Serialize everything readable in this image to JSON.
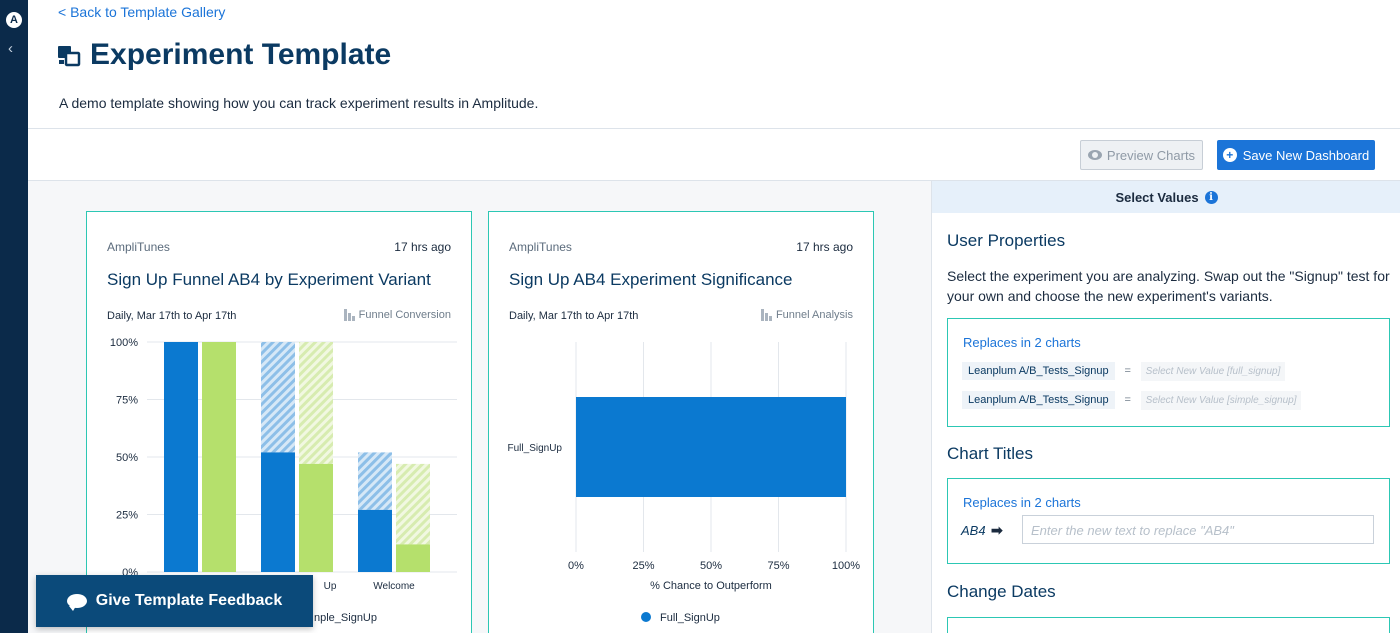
{
  "nav": {
    "logo_glyph": "A",
    "collapse_glyph": "‹"
  },
  "header": {
    "back_link": "< Back to Template Gallery",
    "title": "Experiment Template",
    "description": "A demo template showing how you can track experiment results in Amplitude."
  },
  "toolbar": {
    "preview_label": "Preview Charts",
    "save_label": "Save New Dashboard",
    "save_icon_glyph": "+"
  },
  "colors": {
    "accent": "#1b74d8",
    "teal_border": "#2cc7b4",
    "series_blue": "#0b79d0",
    "series_green": "#b5e06c"
  },
  "cards": [
    {
      "app": "AmpliTunes",
      "time": "17 hrs ago",
      "title": "Sign Up Funnel AB4 by Experiment Variant",
      "range": "Daily, Mar 17th to Apr 17th",
      "chart_type_label": "Funnel Conversion",
      "legend_partial": "nple_SignUp"
    },
    {
      "app": "AmpliTunes",
      "time": "17 hrs ago",
      "title": "Sign Up AB4 Experiment Significance",
      "range": "Daily, Mar 17th to Apr 17th",
      "chart_type_label": "Funnel Analysis",
      "legend_label": "Full_SignUp"
    }
  ],
  "chart_data": [
    {
      "type": "bar",
      "subtype": "funnel",
      "y_ticks": [
        "100%",
        "75%",
        "50%",
        "25%",
        "0%"
      ],
      "ylim": [
        0,
        100
      ],
      "categories": [
        "",
        "Up",
        "Welcome"
      ],
      "series": [
        {
          "values": [
            100,
            52,
            27
          ],
          "dropoff_values": [
            100,
            100,
            52
          ],
          "color": "#0b79d0"
        },
        {
          "values": [
            100,
            47,
            12
          ],
          "dropoff_values": [
            100,
            100,
            47
          ],
          "color": "#b5e06c"
        }
      ]
    },
    {
      "type": "bar",
      "orientation": "horizontal",
      "categories": [
        "Full_SignUp"
      ],
      "values": [
        100
      ],
      "x_ticks": [
        "0%",
        "25%",
        "50%",
        "75%",
        "100%"
      ],
      "xlim": [
        0,
        100
      ],
      "xlabel": "% Chance to Outperform",
      "legend": [
        "Full_SignUp"
      ],
      "color": "#0b79d0"
    }
  ],
  "feedback": {
    "label": "Give Template Feedback"
  },
  "panel": {
    "header": "Select Values",
    "info_glyph": "i",
    "user_properties": {
      "title": "User Properties",
      "description": "Select the experiment you are analyzing. Swap out the \"Signup\" test for your own and choose the new experiment's variants.",
      "replaces": "Replaces in 2 charts",
      "rows": [
        {
          "key": "Leanplum A/B_Tests_Signup",
          "eq": "=",
          "placeholder": "Select New Value [full_signup]"
        },
        {
          "key": "Leanplum A/B_Tests_Signup",
          "eq": "=",
          "placeholder": "Select New Value [simple_signup]"
        }
      ]
    },
    "chart_titles": {
      "title": "Chart Titles",
      "replaces": "Replaces in 2 charts",
      "find_text": "AB4",
      "arrow_glyph": "➡",
      "placeholder": "Enter the new text to replace \"AB4\""
    },
    "change_dates": {
      "title": "Change Dates"
    }
  }
}
